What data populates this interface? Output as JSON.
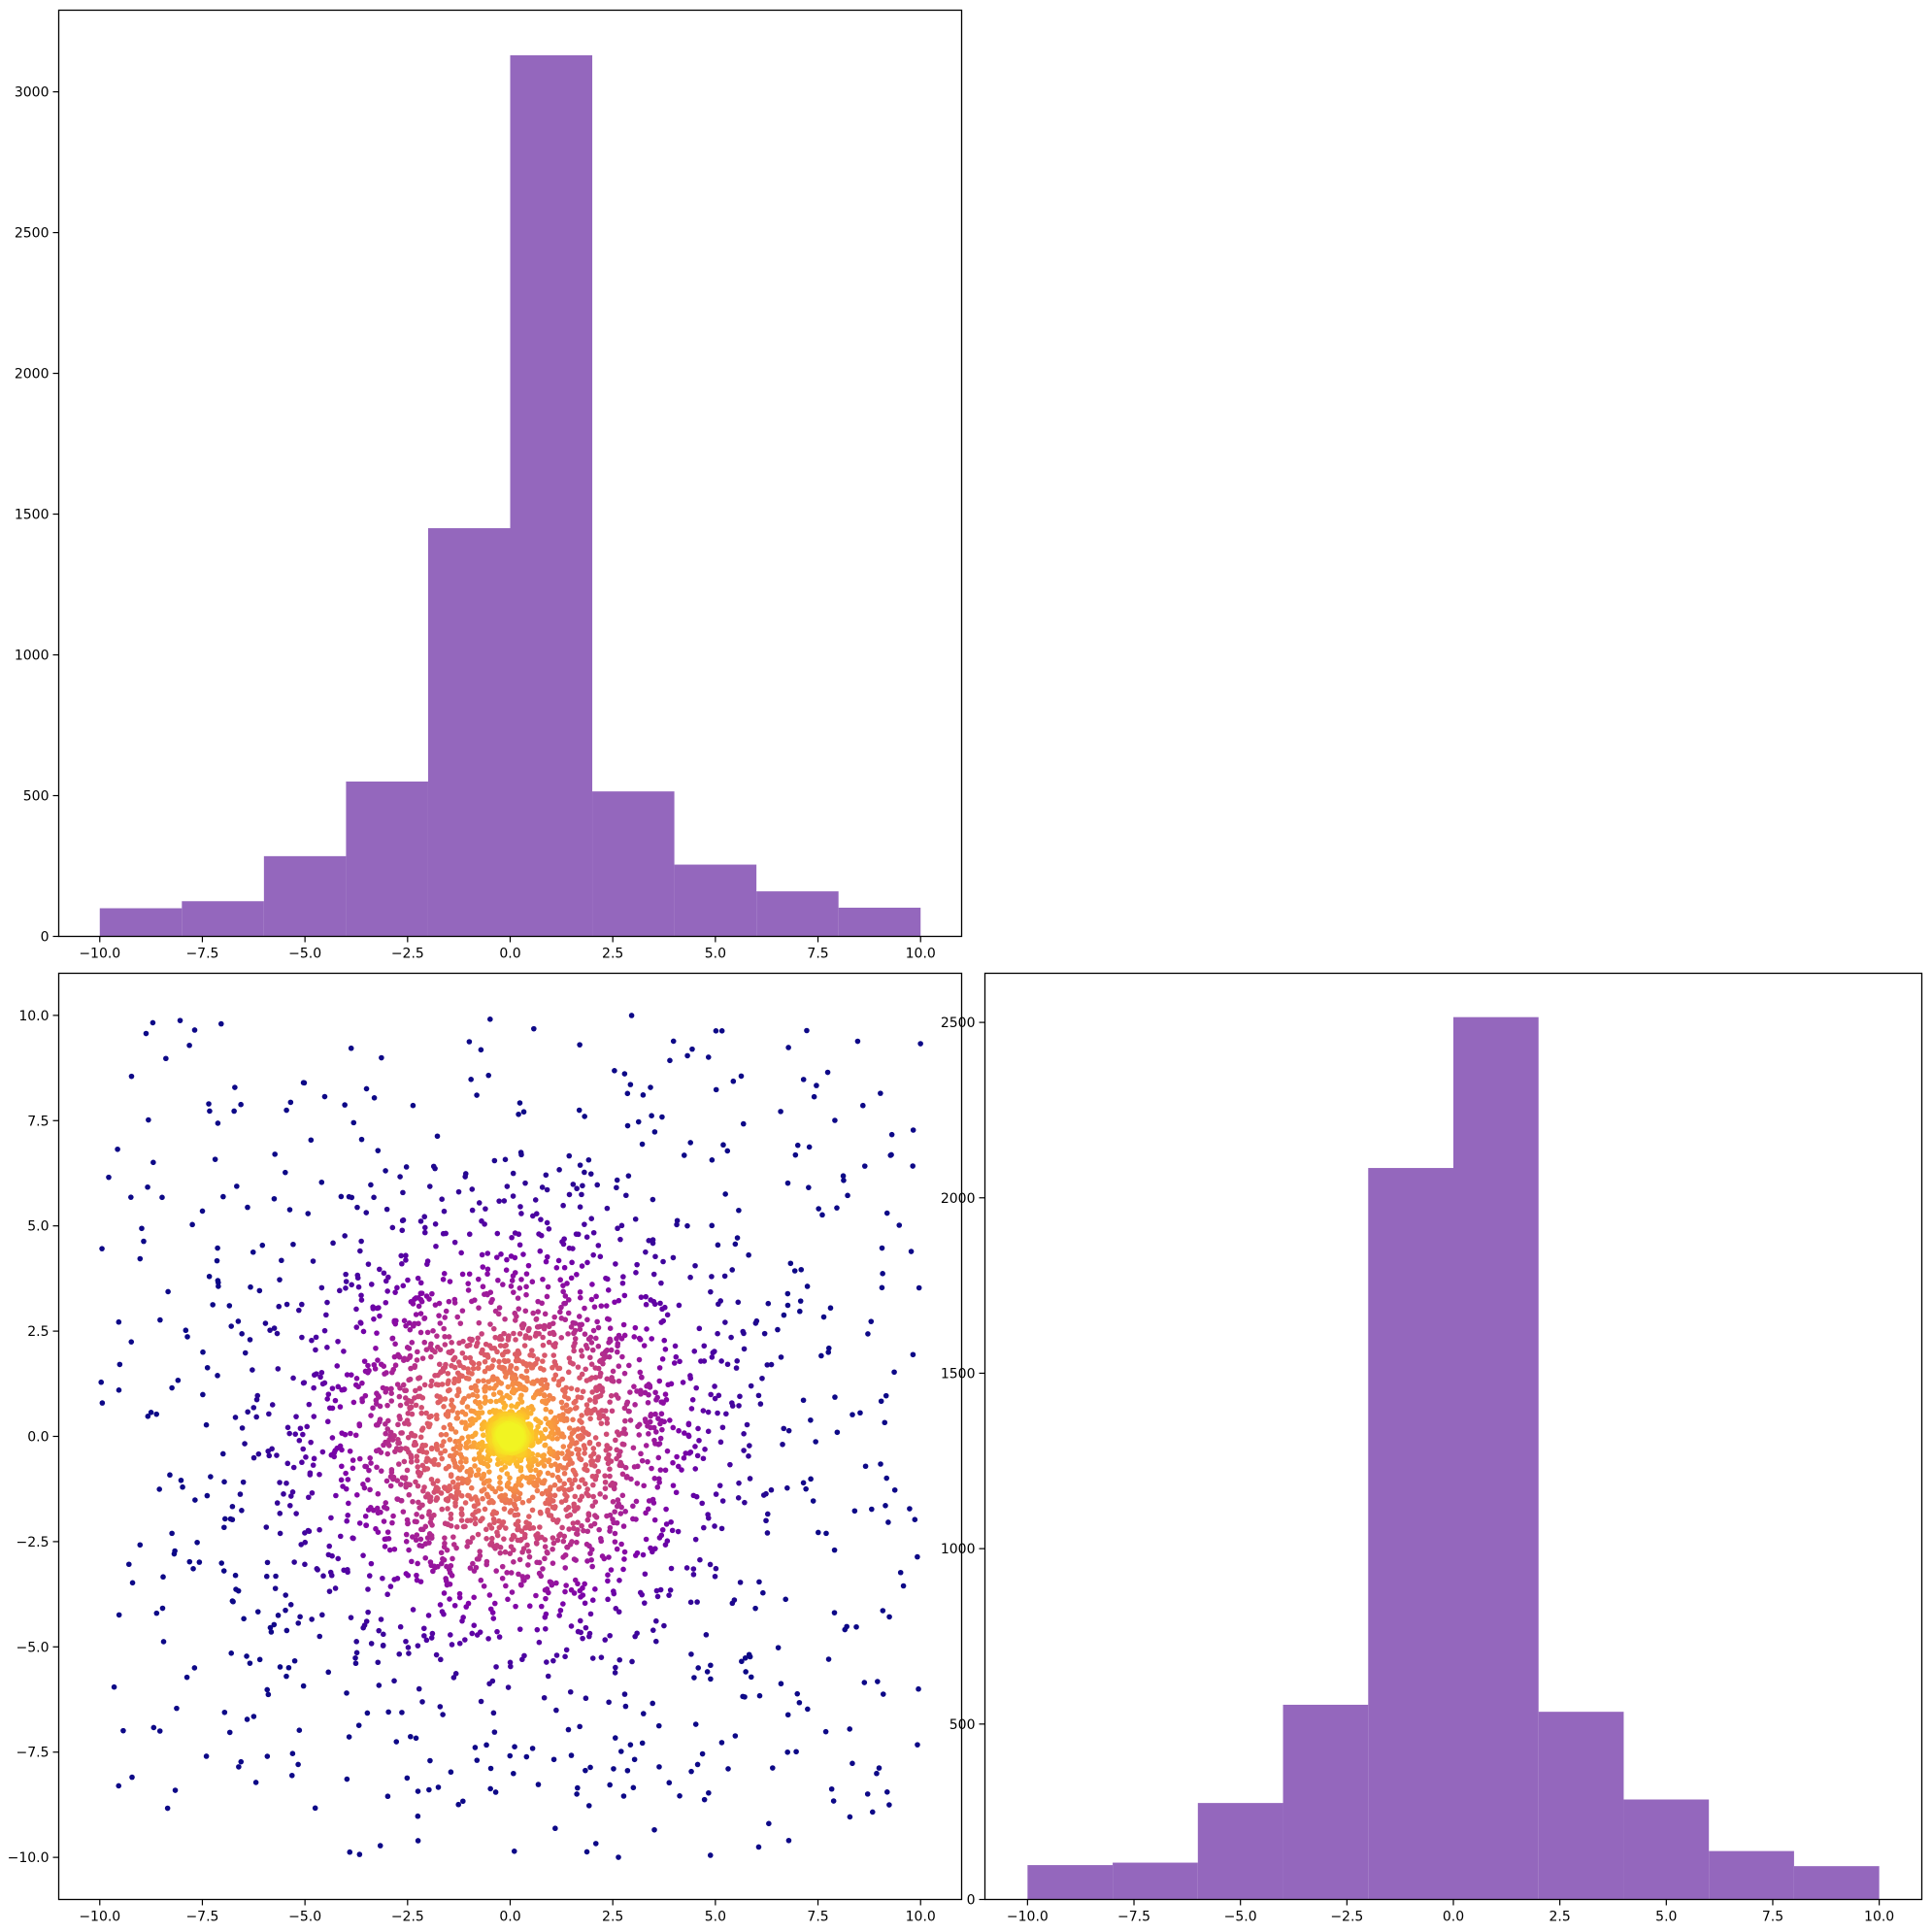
{
  "chart_data": [
    {
      "type": "bar",
      "histogram": true,
      "panel": "top-left",
      "title": "",
      "xlabel": "",
      "ylabel": "",
      "bin_edges": [
        -10,
        -8,
        -6,
        -4,
        -2,
        0,
        2,
        4,
        6,
        8,
        10
      ],
      "values": [
        100,
        125,
        285,
        550,
        1450,
        3130,
        515,
        255,
        160,
        102
      ],
      "color": "#9467bd",
      "xlim": [
        -11,
        11
      ],
      "ylim": [
        0,
        3290
      ],
      "xticks": [
        -10.0,
        -7.5,
        -5.0,
        -2.5,
        0.0,
        2.5,
        5.0,
        7.5,
        10.0
      ],
      "xtick_labels": [
        "−10.0",
        "−7.5",
        "−5.0",
        "−2.5",
        "0.0",
        "2.5",
        "5.0",
        "7.5",
        "10.0"
      ],
      "yticks": [
        0,
        500,
        1000,
        1500,
        2000,
        2500,
        3000
      ],
      "ytick_labels": [
        "0",
        "500",
        "1000",
        "1500",
        "2000",
        "2500",
        "3000"
      ]
    },
    {
      "type": "scatter",
      "panel": "bottom-left",
      "title": "",
      "xlabel": "",
      "ylabel": "",
      "description_of_points": "about 3000 points, dense near the origin and spreading uniformly to the square [-10,10]x[-10,10]; colored with the plasma colormap by distance to the origin (yellow at center, dark indigo at the edges)",
      "point_count": 3000,
      "colormap": "plasma",
      "x_range": [
        -10,
        10
      ],
      "y_range": [
        -10,
        10
      ],
      "xlim": [
        -11,
        11
      ],
      "ylim": [
        -11,
        11
      ],
      "xticks": [
        -10.0,
        -7.5,
        -5.0,
        -2.5,
        0.0,
        2.5,
        5.0,
        7.5,
        10.0
      ],
      "xtick_labels": [
        "−10.0",
        "−7.5",
        "−5.0",
        "−2.5",
        "0.0",
        "2.5",
        "5.0",
        "7.5",
        "10.0"
      ],
      "yticks": [
        -10.0,
        -7.5,
        -5.0,
        -2.5,
        0.0,
        2.5,
        5.0,
        7.5,
        10.0
      ],
      "ytick_labels": [
        "−10.0",
        "−7.5",
        "−5.0",
        "−2.5",
        "0.0",
        "2.5",
        "5.0",
        "7.5",
        "10.0"
      ]
    },
    {
      "type": "bar",
      "histogram": true,
      "panel": "bottom-right",
      "title": "",
      "xlabel": "",
      "ylabel": "",
      "bin_edges": [
        -10,
        -8,
        -6,
        -4,
        -2,
        0,
        2,
        4,
        6,
        8,
        10
      ],
      "values": [
        98,
        105,
        275,
        555,
        2085,
        2515,
        535,
        285,
        138,
        95
      ],
      "color": "#9467bd",
      "xlim": [
        -11,
        11
      ],
      "ylim": [
        0,
        2640
      ],
      "xticks": [
        -10.0,
        -7.5,
        -5.0,
        -2.5,
        0.0,
        2.5,
        5.0,
        7.5,
        10.0
      ],
      "xtick_labels": [
        "−10.0",
        "−7.5",
        "−5.0",
        "−2.5",
        "0.0",
        "2.5",
        "5.0",
        "7.5",
        "10.0"
      ],
      "yticks": [
        0,
        500,
        1000,
        1500,
        2000,
        2500
      ],
      "ytick_labels": [
        "0",
        "500",
        "1000",
        "1500",
        "2000",
        "2500"
      ]
    }
  ]
}
